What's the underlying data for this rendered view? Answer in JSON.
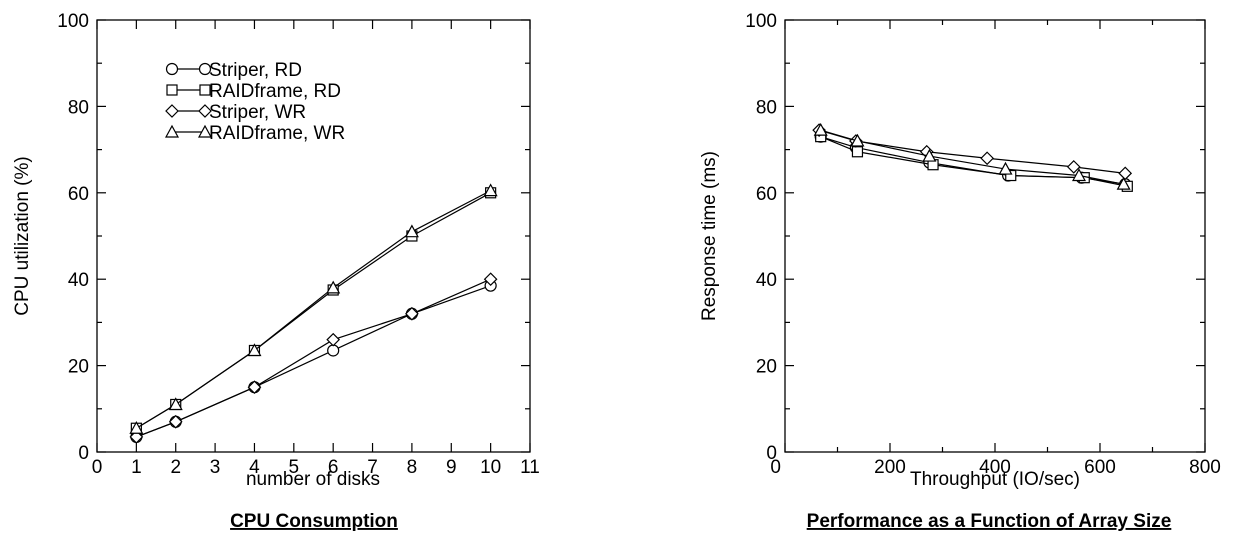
{
  "chart_data": [
    {
      "type": "line",
      "title": "CPU Consumption",
      "xlabel": "number of disks",
      "ylabel": "CPU utilization (%)",
      "xlim": [
        0,
        11
      ],
      "ylim": [
        0,
        100
      ],
      "xticks": [
        0,
        1,
        2,
        3,
        4,
        5,
        6,
        7,
        8,
        9,
        10,
        11
      ],
      "yticks": [
        0,
        20,
        40,
        60,
        80,
        100
      ],
      "minor_yticks": [
        10,
        30,
        50,
        70,
        90
      ],
      "grid": false,
      "legend_position": "top-left",
      "series": [
        {
          "name": "Striper, RD",
          "marker": "circle",
          "x": [
            1,
            2,
            4,
            6,
            8,
            10
          ],
          "y": [
            3.5,
            7,
            15,
            23.5,
            32,
            38.5
          ]
        },
        {
          "name": "RAIDframe, RD",
          "marker": "square",
          "x": [
            1,
            2,
            4,
            6,
            8,
            10
          ],
          "y": [
            5.5,
            11,
            23.5,
            37.5,
            50,
            60
          ]
        },
        {
          "name": "Striper, WR",
          "marker": "diamond",
          "x": [
            1,
            2,
            4,
            6,
            8,
            10
          ],
          "y": [
            3.5,
            7,
            15,
            26,
            32,
            40
          ]
        },
        {
          "name": "RAIDframe, WR",
          "marker": "triangle",
          "x": [
            1,
            2,
            4,
            6,
            8,
            10
          ],
          "y": [
            5.5,
            11,
            23.5,
            38,
            51,
            60.5
          ]
        }
      ]
    },
    {
      "type": "line",
      "title": "Performance as a Function of Array Size",
      "xlabel": "Throughput (IO/sec)",
      "ylabel": "Response time (ms)",
      "xlim": [
        0,
        800
      ],
      "ylim": [
        0,
        100
      ],
      "xticks": [
        0,
        200,
        400,
        600,
        800
      ],
      "minor_xticks": [
        100,
        300,
        500,
        700
      ],
      "yticks": [
        0,
        20,
        40,
        60,
        80,
        100
      ],
      "minor_yticks": [
        10,
        30,
        50,
        70,
        90
      ],
      "grid": false,
      "series": [
        {
          "marker": "circle",
          "x": [
            68,
            135,
            275,
            425,
            565,
            648
          ],
          "y": [
            73,
            70.5,
            67,
            64,
            63.5,
            62
          ]
        },
        {
          "marker": "square",
          "x": [
            68,
            138,
            282,
            430,
            570,
            652
          ],
          "y": [
            73,
            69.5,
            66.5,
            64,
            63.5,
            61.5
          ]
        },
        {
          "marker": "diamond",
          "x": [
            65,
            135,
            270,
            385,
            550,
            648
          ],
          "y": [
            74.5,
            72,
            69.5,
            68,
            66,
            64.5
          ]
        },
        {
          "marker": "triangle",
          "x": [
            68,
            138,
            275,
            420,
            560,
            645
          ],
          "y": [
            74.5,
            72,
            68.5,
            65.5,
            64,
            62
          ]
        }
      ]
    }
  ]
}
